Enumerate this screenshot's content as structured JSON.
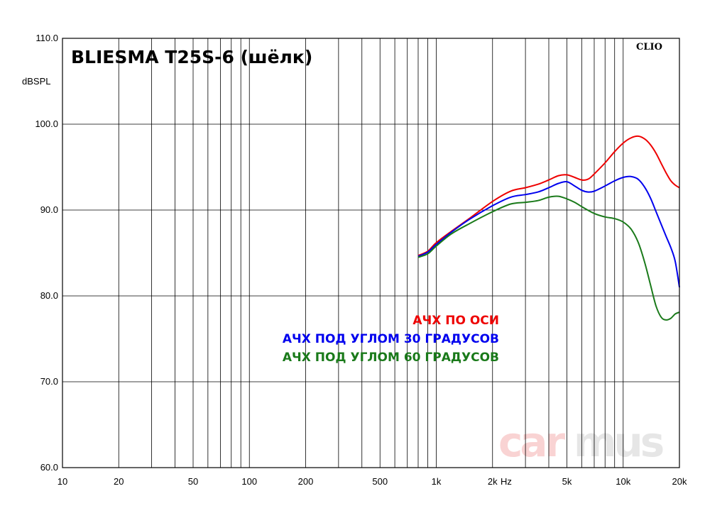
{
  "chart_data": {
    "type": "line",
    "title": "BLIESMA T25S-6 (шёлк)",
    "brand": "CLIO",
    "watermark": {
      "part1": "car",
      "part2": "mus"
    },
    "xscale": "log",
    "xlim": [
      10,
      20000
    ],
    "ylim": [
      60,
      110
    ],
    "xlabel": "Hz",
    "ylabel": "dBSPL",
    "grid": true,
    "x_ticks": [
      {
        "v": 10,
        "label": "10"
      },
      {
        "v": 20,
        "label": "20"
      },
      {
        "v": 50,
        "label": "50"
      },
      {
        "v": 100,
        "label": "100"
      },
      {
        "v": 200,
        "label": "200"
      },
      {
        "v": 500,
        "label": "500"
      },
      {
        "v": 1000,
        "label": "1k"
      },
      {
        "v": 2000,
        "label": "2k"
      },
      {
        "v": 5000,
        "label": "5k"
      },
      {
        "v": 10000,
        "label": "10k"
      },
      {
        "v": 20000,
        "label": "20k"
      }
    ],
    "y_ticks": [
      {
        "v": 110,
        "label": "110.0"
      },
      {
        "v": 100,
        "label": "100.0"
      },
      {
        "v": 90,
        "label": "90.0"
      },
      {
        "v": 80,
        "label": "80.0"
      },
      {
        "v": 70,
        "label": "70.0"
      },
      {
        "v": 60,
        "label": "60.0"
      }
    ],
    "legend_position": "center",
    "series": [
      {
        "name": "АЧХ ПО ОСИ",
        "color": "#ee0000",
        "points": [
          [
            800,
            84.7
          ],
          [
            900,
            85.2
          ],
          [
            1000,
            86.2
          ],
          [
            1200,
            87.5
          ],
          [
            1500,
            89.0
          ],
          [
            2000,
            91.0
          ],
          [
            2500,
            92.2
          ],
          [
            3000,
            92.6
          ],
          [
            3500,
            93.0
          ],
          [
            4000,
            93.5
          ],
          [
            4500,
            94.0
          ],
          [
            5000,
            94.1
          ],
          [
            5500,
            93.8
          ],
          [
            6000,
            93.5
          ],
          [
            6500,
            93.6
          ],
          [
            7000,
            94.2
          ],
          [
            8000,
            95.5
          ],
          [
            9000,
            96.8
          ],
          [
            10000,
            97.8
          ],
          [
            11000,
            98.4
          ],
          [
            12000,
            98.6
          ],
          [
            13000,
            98.3
          ],
          [
            14000,
            97.6
          ],
          [
            15000,
            96.6
          ],
          [
            16000,
            95.4
          ],
          [
            17000,
            94.3
          ],
          [
            18000,
            93.4
          ],
          [
            19000,
            92.9
          ],
          [
            20000,
            92.6
          ]
        ]
      },
      {
        "name": "АЧХ ПОД УГЛОМ 30 ГРАДУСОВ",
        "color": "#0000ee",
        "points": [
          [
            800,
            84.6
          ],
          [
            900,
            85.1
          ],
          [
            1000,
            86.0
          ],
          [
            1200,
            87.4
          ],
          [
            1500,
            88.9
          ],
          [
            2000,
            90.5
          ],
          [
            2500,
            91.5
          ],
          [
            3000,
            91.8
          ],
          [
            3500,
            92.1
          ],
          [
            4000,
            92.6
          ],
          [
            4500,
            93.1
          ],
          [
            5000,
            93.3
          ],
          [
            5500,
            92.8
          ],
          [
            6000,
            92.3
          ],
          [
            6500,
            92.1
          ],
          [
            7000,
            92.2
          ],
          [
            8000,
            92.8
          ],
          [
            9000,
            93.4
          ],
          [
            10000,
            93.8
          ],
          [
            11000,
            93.9
          ],
          [
            12000,
            93.6
          ],
          [
            13000,
            92.7
          ],
          [
            14000,
            91.4
          ],
          [
            15000,
            89.8
          ],
          [
            16000,
            88.3
          ],
          [
            17000,
            86.9
          ],
          [
            18000,
            85.6
          ],
          [
            19000,
            84.0
          ],
          [
            20000,
            81.0
          ]
        ]
      },
      {
        "name": "АЧХ ПОД УГЛОМ 60 ГРАДУСОВ",
        "color": "#1a7a1a",
        "points": [
          [
            800,
            84.5
          ],
          [
            900,
            84.9
          ],
          [
            1000,
            85.8
          ],
          [
            1200,
            87.2
          ],
          [
            1500,
            88.4
          ],
          [
            2000,
            89.8
          ],
          [
            2500,
            90.7
          ],
          [
            3000,
            90.9
          ],
          [
            3500,
            91.1
          ],
          [
            4000,
            91.5
          ],
          [
            4500,
            91.6
          ],
          [
            5000,
            91.3
          ],
          [
            5500,
            90.9
          ],
          [
            6000,
            90.4
          ],
          [
            7000,
            89.6
          ],
          [
            8000,
            89.2
          ],
          [
            9000,
            89.0
          ],
          [
            10000,
            88.6
          ],
          [
            11000,
            87.8
          ],
          [
            12000,
            86.3
          ],
          [
            13000,
            84.0
          ],
          [
            14000,
            81.3
          ],
          [
            15000,
            78.8
          ],
          [
            16000,
            77.5
          ],
          [
            17000,
            77.2
          ],
          [
            18000,
            77.4
          ],
          [
            19000,
            77.9
          ],
          [
            20000,
            78.1
          ]
        ]
      }
    ]
  }
}
